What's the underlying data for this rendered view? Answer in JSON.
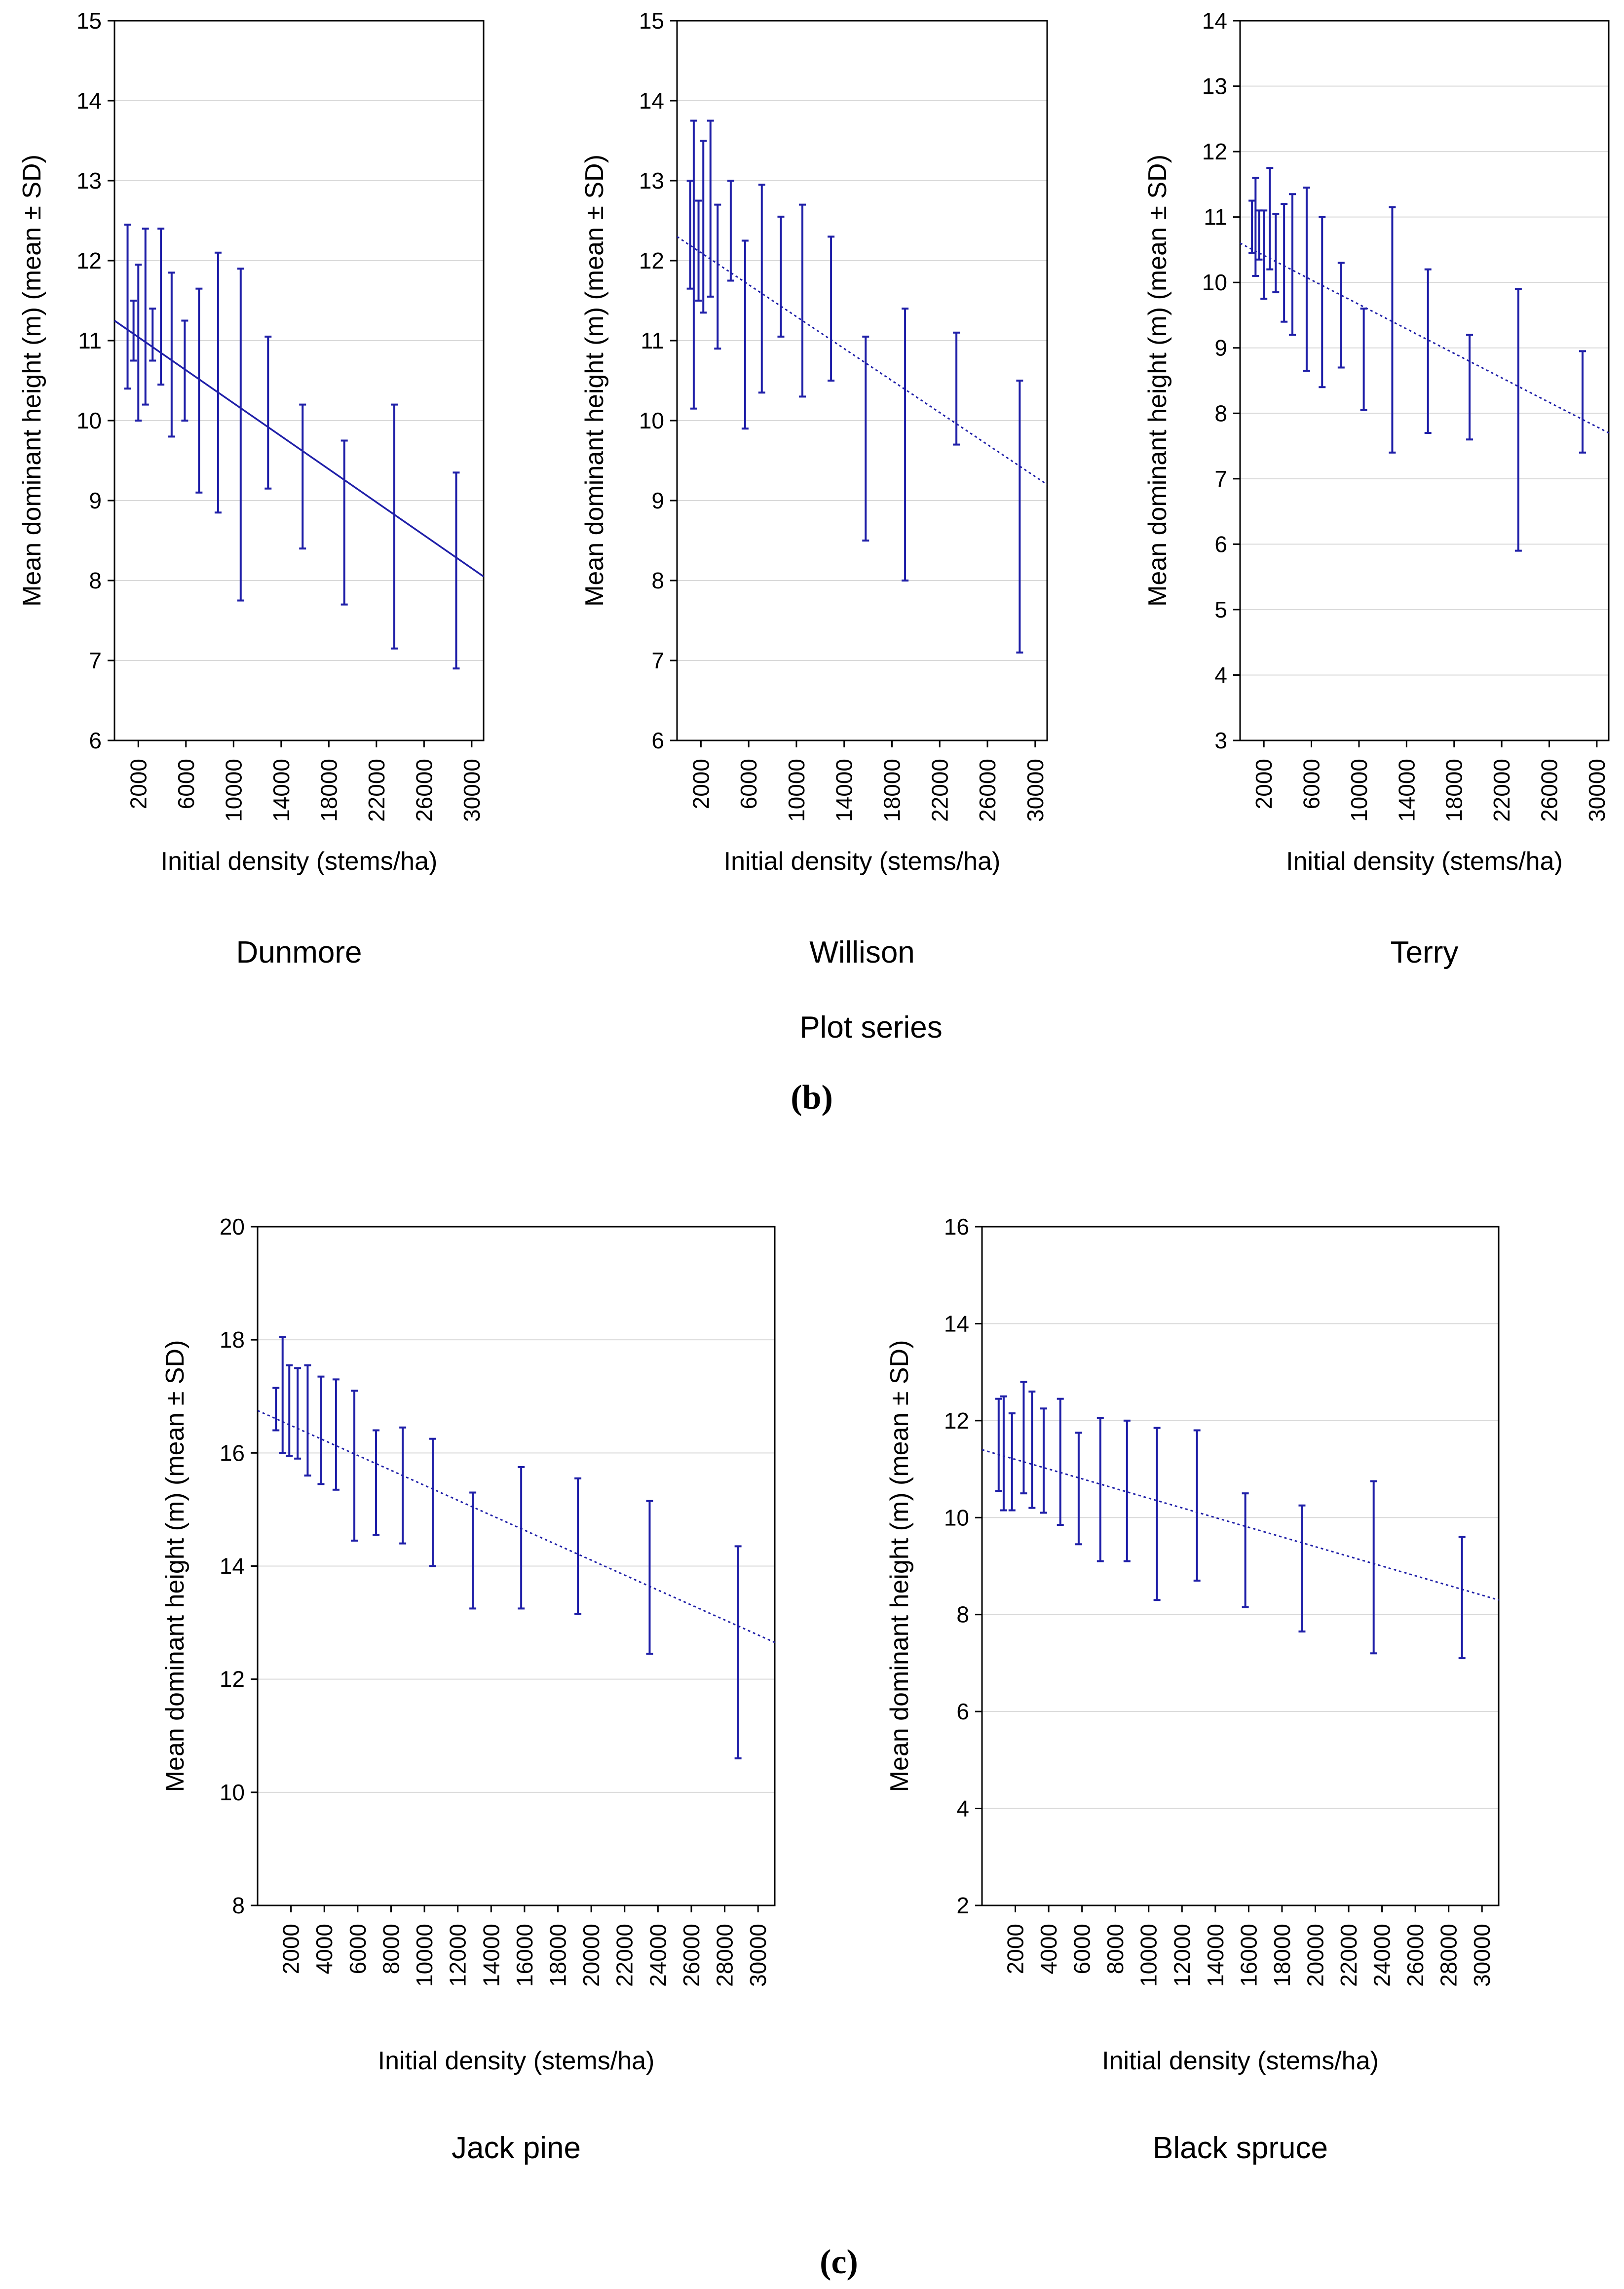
{
  "figure": {
    "group_b_label": "Plot series",
    "caption_b": "(b)",
    "caption_c": "(c)"
  },
  "colors": {
    "series": "#1f1fa8",
    "grid": "#d9d9d9",
    "frame": "#000000"
  },
  "chart_data": [
    {
      "id": "dunmore",
      "type": "errorbar",
      "title": "Dunmore",
      "xlabel": "Initial density (stems/ha)",
      "ylabel": "Mean dominant height (m) (mean ± SD)",
      "xlim": [
        0,
        31000
      ],
      "ylim": [
        6,
        15
      ],
      "xticks": [
        2000,
        6000,
        10000,
        14000,
        18000,
        22000,
        26000,
        30000
      ],
      "yticks": [
        6,
        7,
        8,
        9,
        10,
        11,
        12,
        13,
        14,
        15
      ],
      "trend": {
        "style": "solid",
        "x": [
          0,
          31000
        ],
        "y": [
          11.25,
          8.05
        ]
      },
      "points": [
        {
          "x": 1100,
          "lo": 10.4,
          "hi": 12.45
        },
        {
          "x": 1600,
          "lo": 10.75,
          "hi": 11.5
        },
        {
          "x": 2000,
          "lo": 10.0,
          "hi": 11.95
        },
        {
          "x": 2600,
          "lo": 10.2,
          "hi": 12.4
        },
        {
          "x": 3200,
          "lo": 10.75,
          "hi": 11.4
        },
        {
          "x": 3900,
          "lo": 10.45,
          "hi": 12.4
        },
        {
          "x": 4800,
          "lo": 9.8,
          "hi": 11.85
        },
        {
          "x": 5900,
          "lo": 10.0,
          "hi": 11.25
        },
        {
          "x": 7100,
          "lo": 9.1,
          "hi": 11.65
        },
        {
          "x": 8700,
          "lo": 8.85,
          "hi": 12.1
        },
        {
          "x": 10600,
          "lo": 7.75,
          "hi": 11.9
        },
        {
          "x": 12900,
          "lo": 9.15,
          "hi": 11.05
        },
        {
          "x": 15800,
          "lo": 8.4,
          "hi": 10.2
        },
        {
          "x": 19300,
          "lo": 7.7,
          "hi": 9.75
        },
        {
          "x": 23500,
          "lo": 7.15,
          "hi": 10.2
        },
        {
          "x": 28700,
          "lo": 6.9,
          "hi": 9.35
        }
      ]
    },
    {
      "id": "willison",
      "type": "errorbar",
      "title": "Willison",
      "xlabel": "Initial density (stems/ha)",
      "ylabel": "Mean dominant height (m) (mean ± SD)",
      "xlim": [
        0,
        31000
      ],
      "ylim": [
        6,
        15
      ],
      "xticks": [
        2000,
        6000,
        10000,
        14000,
        18000,
        22000,
        26000,
        30000
      ],
      "yticks": [
        6,
        7,
        8,
        9,
        10,
        11,
        12,
        13,
        14,
        15
      ],
      "trend": {
        "style": "dotted",
        "x": [
          0,
          31000
        ],
        "y": [
          12.3,
          9.2
        ]
      },
      "points": [
        {
          "x": 1100,
          "lo": 11.65,
          "hi": 13.0
        },
        {
          "x": 1400,
          "lo": 10.15,
          "hi": 13.75
        },
        {
          "x": 1800,
          "lo": 11.5,
          "hi": 12.75
        },
        {
          "x": 2200,
          "lo": 11.35,
          "hi": 13.5
        },
        {
          "x": 2800,
          "lo": 11.55,
          "hi": 13.75
        },
        {
          "x": 3400,
          "lo": 10.9,
          "hi": 12.7
        },
        {
          "x": 4500,
          "lo": 11.75,
          "hi": 13.0
        },
        {
          "x": 5700,
          "lo": 9.9,
          "hi": 12.25
        },
        {
          "x": 7100,
          "lo": 10.35,
          "hi": 12.95
        },
        {
          "x": 8700,
          "lo": 11.05,
          "hi": 12.55
        },
        {
          "x": 10500,
          "lo": 10.3,
          "hi": 12.7
        },
        {
          "x": 12900,
          "lo": 10.5,
          "hi": 12.3
        },
        {
          "x": 15800,
          "lo": 8.5,
          "hi": 11.05
        },
        {
          "x": 19100,
          "lo": 8.0,
          "hi": 11.4
        },
        {
          "x": 23400,
          "lo": 9.7,
          "hi": 11.1
        },
        {
          "x": 28700,
          "lo": 7.1,
          "hi": 10.5
        }
      ]
    },
    {
      "id": "terry",
      "type": "errorbar",
      "title": "Terry",
      "xlabel": "Initial density (stems/ha)",
      "ylabel": "Mean dominant height (m) (mean ± SD)",
      "xlim": [
        0,
        31000
      ],
      "ylim": [
        3,
        14
      ],
      "xticks": [
        2000,
        6000,
        10000,
        14000,
        18000,
        22000,
        26000,
        30000
      ],
      "yticks": [
        3,
        4,
        5,
        6,
        7,
        8,
        9,
        10,
        11,
        12,
        13,
        14
      ],
      "trend": {
        "style": "dotted",
        "x": [
          0,
          31000
        ],
        "y": [
          10.6,
          7.7
        ]
      },
      "points": [
        {
          "x": 1000,
          "lo": 10.45,
          "hi": 11.25
        },
        {
          "x": 1300,
          "lo": 10.1,
          "hi": 11.6
        },
        {
          "x": 1600,
          "lo": 10.35,
          "hi": 11.1
        },
        {
          "x": 2000,
          "lo": 9.75,
          "hi": 11.1
        },
        {
          "x": 2500,
          "lo": 10.2,
          "hi": 11.75
        },
        {
          "x": 3000,
          "lo": 9.85,
          "hi": 11.05
        },
        {
          "x": 3700,
          "lo": 9.4,
          "hi": 11.2
        },
        {
          "x": 4400,
          "lo": 9.2,
          "hi": 11.35
        },
        {
          "x": 5600,
          "lo": 8.65,
          "hi": 11.45
        },
        {
          "x": 6900,
          "lo": 8.4,
          "hi": 11.0
        },
        {
          "x": 8500,
          "lo": 8.7,
          "hi": 10.3
        },
        {
          "x": 10400,
          "lo": 8.05,
          "hi": 9.6
        },
        {
          "x": 12800,
          "lo": 7.4,
          "hi": 11.15
        },
        {
          "x": 15800,
          "lo": 7.7,
          "hi": 10.2
        },
        {
          "x": 19300,
          "lo": 7.6,
          "hi": 9.2
        },
        {
          "x": 23400,
          "lo": 5.9,
          "hi": 9.9
        },
        {
          "x": 28800,
          "lo": 7.4,
          "hi": 8.95
        }
      ]
    },
    {
      "id": "jackpine",
      "type": "errorbar",
      "title": "Jack pine",
      "xlabel": "Initial density (stems/ha)",
      "ylabel": "Mean dominant height (m) (mean ± SD)",
      "xlim": [
        0,
        31000
      ],
      "ylim": [
        8,
        20
      ],
      "xticks": [
        2000,
        4000,
        6000,
        8000,
        10000,
        12000,
        14000,
        16000,
        18000,
        20000,
        22000,
        24000,
        26000,
        28000,
        30000
      ],
      "yticks": [
        8,
        10,
        12,
        14,
        16,
        18,
        20
      ],
      "trend": {
        "style": "dotted",
        "x": [
          0,
          31000
        ],
        "y": [
          16.75,
          12.65
        ]
      },
      "points": [
        {
          "x": 1100,
          "lo": 16.4,
          "hi": 17.15
        },
        {
          "x": 1500,
          "lo": 16.0,
          "hi": 18.05
        },
        {
          "x": 1900,
          "lo": 15.95,
          "hi": 17.55
        },
        {
          "x": 2400,
          "lo": 15.9,
          "hi": 17.5
        },
        {
          "x": 3000,
          "lo": 15.6,
          "hi": 17.55
        },
        {
          "x": 3800,
          "lo": 15.45,
          "hi": 17.35
        },
        {
          "x": 4700,
          "lo": 15.35,
          "hi": 17.3
        },
        {
          "x": 5800,
          "lo": 14.45,
          "hi": 17.1
        },
        {
          "x": 7100,
          "lo": 14.55,
          "hi": 16.4
        },
        {
          "x": 8700,
          "lo": 14.4,
          "hi": 16.45
        },
        {
          "x": 10500,
          "lo": 14.0,
          "hi": 16.25
        },
        {
          "x": 12900,
          "lo": 13.25,
          "hi": 15.3
        },
        {
          "x": 15800,
          "lo": 13.25,
          "hi": 15.75
        },
        {
          "x": 19200,
          "lo": 13.15,
          "hi": 15.55
        },
        {
          "x": 23500,
          "lo": 12.45,
          "hi": 15.15
        },
        {
          "x": 28800,
          "lo": 10.6,
          "hi": 14.35
        }
      ]
    },
    {
      "id": "blackspruce",
      "type": "errorbar",
      "title": "Black spruce",
      "xlabel": "Initial density (stems/ha)",
      "ylabel": "Mean dominant height (m) (mean ± SD)",
      "xlim": [
        0,
        31000
      ],
      "ylim": [
        2,
        16
      ],
      "xticks": [
        2000,
        4000,
        6000,
        8000,
        10000,
        12000,
        14000,
        16000,
        18000,
        20000,
        22000,
        24000,
        26000,
        28000,
        30000
      ],
      "yticks": [
        2,
        4,
        6,
        8,
        10,
        12,
        14,
        16
      ],
      "trend": {
        "style": "dotted",
        "x": [
          0,
          31000
        ],
        "y": [
          11.4,
          8.3
        ]
      },
      "points": [
        {
          "x": 1000,
          "lo": 10.55,
          "hi": 12.45
        },
        {
          "x": 1300,
          "lo": 10.15,
          "hi": 12.5
        },
        {
          "x": 1800,
          "lo": 10.15,
          "hi": 12.15
        },
        {
          "x": 2500,
          "lo": 10.5,
          "hi": 12.8
        },
        {
          "x": 3000,
          "lo": 10.2,
          "hi": 12.6
        },
        {
          "x": 3700,
          "lo": 10.1,
          "hi": 12.25
        },
        {
          "x": 4700,
          "lo": 9.85,
          "hi": 12.45
        },
        {
          "x": 5800,
          "lo": 9.45,
          "hi": 11.75
        },
        {
          "x": 7100,
          "lo": 9.1,
          "hi": 12.05
        },
        {
          "x": 8700,
          "lo": 9.1,
          "hi": 12.0
        },
        {
          "x": 10500,
          "lo": 8.3,
          "hi": 11.85
        },
        {
          "x": 12900,
          "lo": 8.7,
          "hi": 11.8
        },
        {
          "x": 15800,
          "lo": 8.15,
          "hi": 10.5
        },
        {
          "x": 19200,
          "lo": 7.65,
          "hi": 10.25
        },
        {
          "x": 23500,
          "lo": 7.2,
          "hi": 10.75
        },
        {
          "x": 28800,
          "lo": 7.1,
          "hi": 9.6
        }
      ]
    }
  ]
}
